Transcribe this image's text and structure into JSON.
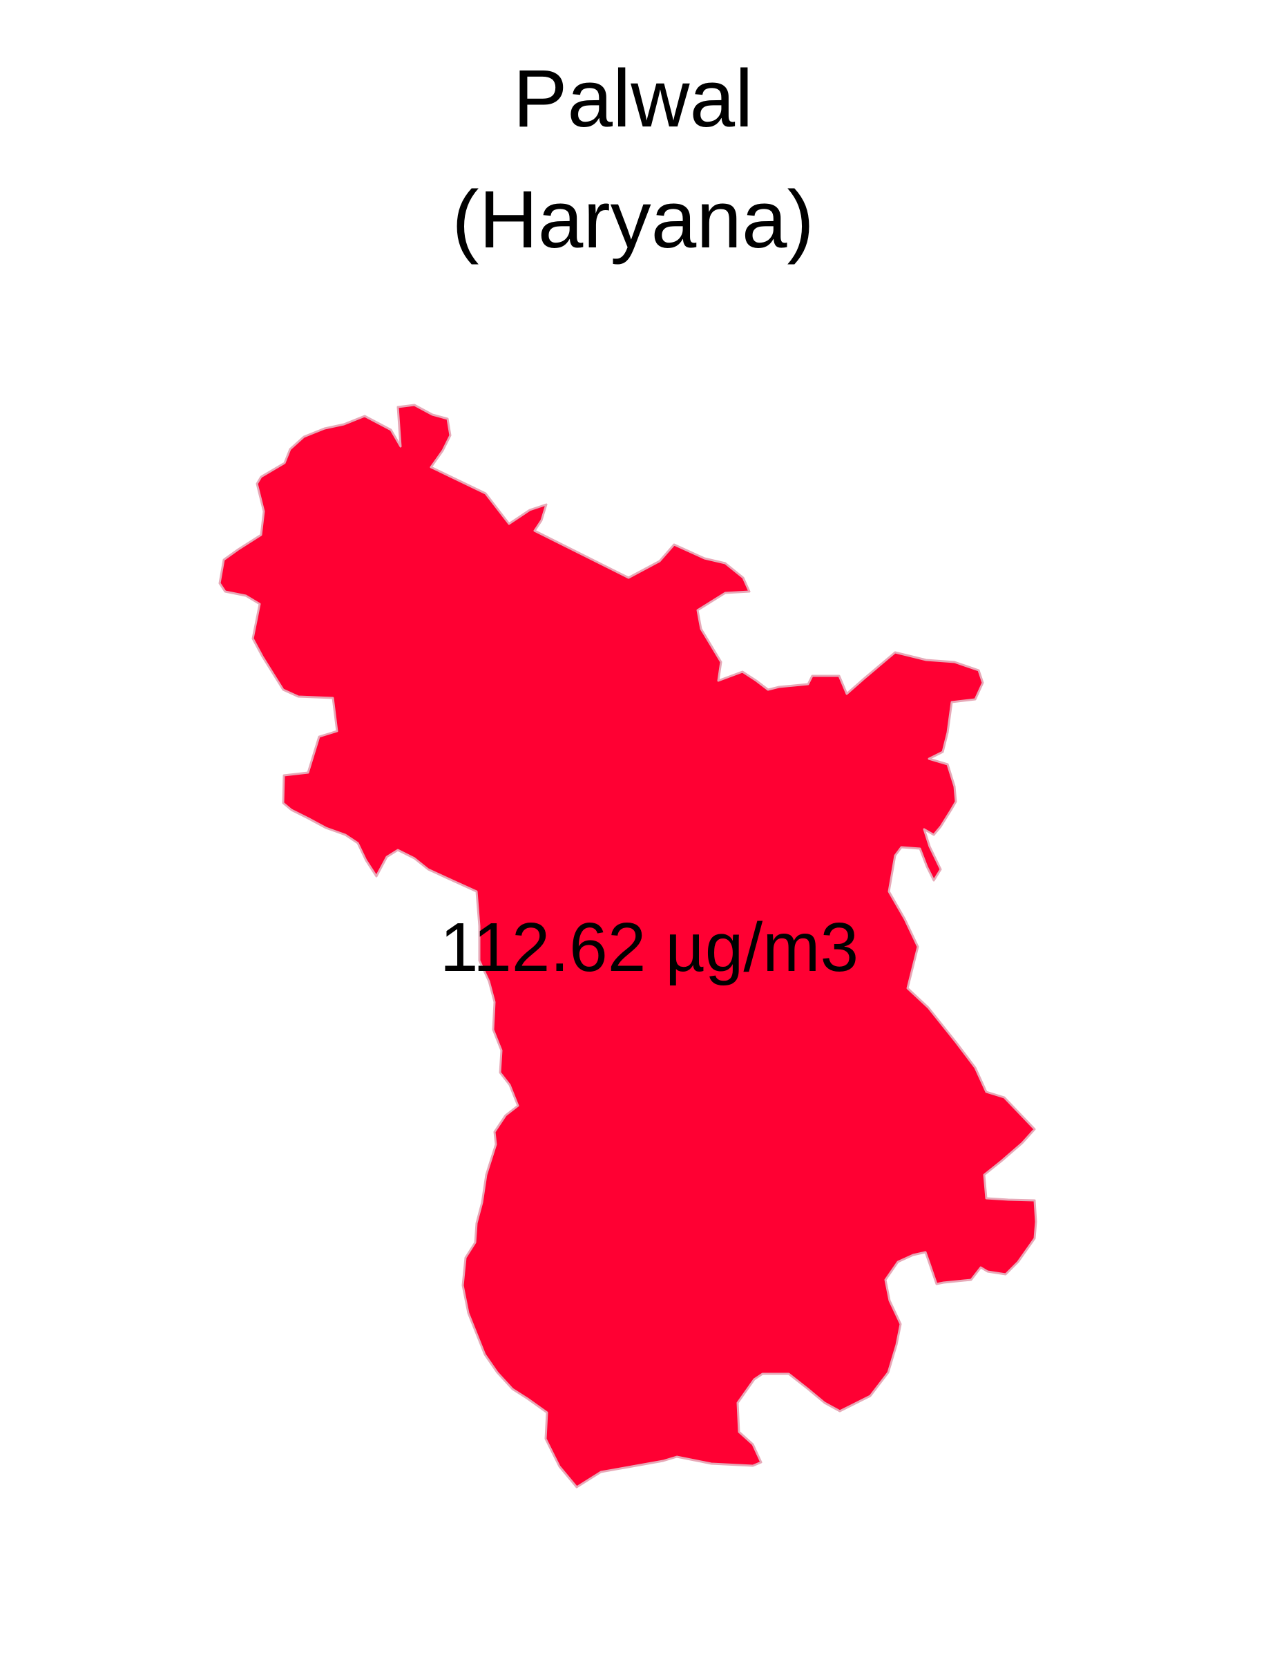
{
  "map": {
    "district": "Palwal",
    "state_label": "(Haryana)",
    "value_label": "112.62 µg/m3",
    "fill_color": "#FF0033",
    "border_color": "#E7A9B8",
    "background_color": "#FFFFFF"
  }
}
